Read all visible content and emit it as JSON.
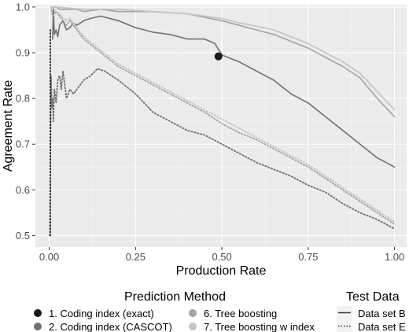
{
  "chart_data": {
    "type": "line",
    "xlabel": "Production Rate",
    "ylabel": "Agreement Rate",
    "xlim": [
      -0.04,
      1.035
    ],
    "ylim": [
      0.475,
      1.005
    ],
    "x_ticks": [
      0.0,
      0.25,
      0.5,
      0.75,
      1.0
    ],
    "x_tick_labels": [
      "0.00",
      "0.25",
      "0.50",
      "0.75",
      "1.00"
    ],
    "y_ticks": [
      0.5,
      0.6,
      0.7,
      0.8,
      0.9,
      1.0
    ],
    "y_tick_labels": [
      "0.5",
      "0.6",
      "0.7",
      "0.8",
      "0.9",
      "1.0"
    ],
    "grid": true,
    "legend_placement": "bottom",
    "legends": {
      "method_title": "Prediction Method",
      "method_items": [
        {
          "label": "1. Coding index (exact)",
          "color": "#1a1a1a"
        },
        {
          "label": "2. Coding index (CASCOT)",
          "color": "#707070"
        },
        {
          "label": "6. Tree boosting",
          "color": "#a3a3a3"
        },
        {
          "label": "7. Tree boosting w index",
          "color": "#c4c4c4"
        }
      ],
      "test_title": "Test Data",
      "test_items": [
        {
          "label": "Data set B",
          "style": "solid"
        },
        {
          "label": "Data set E",
          "style": "dotted"
        }
      ]
    },
    "points": [
      {
        "name": "1. Coding index (exact)",
        "test": "Data set B",
        "x": 0.49,
        "y": 0.892,
        "color": "#1a1a1a"
      }
    ],
    "series": [
      {
        "method": "2. Coding index (CASCOT)",
        "test": "Data set B",
        "style": "solid",
        "color": "#707070",
        "x": [
          0.01,
          0.012,
          0.015,
          0.02,
          0.025,
          0.03,
          0.04,
          0.05,
          0.06,
          0.07,
          0.08,
          0.1,
          0.12,
          0.15,
          0.2,
          0.25,
          0.3,
          0.35,
          0.4,
          0.45,
          0.48,
          0.5,
          0.55,
          0.6,
          0.65,
          0.7,
          0.75,
          0.8,
          0.85,
          0.9,
          0.95,
          1.0
        ],
        "y": [
          0.93,
          1.0,
          0.94,
          0.95,
          0.935,
          0.96,
          0.97,
          0.95,
          0.955,
          0.965,
          0.96,
          0.97,
          0.975,
          0.98,
          0.97,
          0.955,
          0.945,
          0.94,
          0.93,
          0.93,
          0.92,
          0.895,
          0.88,
          0.86,
          0.84,
          0.81,
          0.79,
          0.76,
          0.73,
          0.7,
          0.67,
          0.65
        ]
      },
      {
        "method": "6. Tree boosting",
        "test": "Data set B",
        "style": "solid",
        "color": "#a3a3a3",
        "x": [
          0.01,
          0.02,
          0.03,
          0.05,
          0.08,
          0.1,
          0.15,
          0.2,
          0.3,
          0.4,
          0.5,
          0.55,
          0.6,
          0.65,
          0.7,
          0.75,
          0.8,
          0.85,
          0.9,
          0.95,
          1.0
        ],
        "y": [
          1.0,
          1.0,
          0.995,
          0.995,
          0.995,
          0.99,
          0.995,
          0.99,
          0.99,
          0.985,
          0.97,
          0.96,
          0.95,
          0.94,
          0.925,
          0.91,
          0.89,
          0.87,
          0.845,
          0.8,
          0.76
        ]
      },
      {
        "method": "7. Tree boosting w index",
        "test": "Data set B",
        "style": "solid",
        "color": "#c4c4c4",
        "x": [
          0.01,
          0.02,
          0.05,
          0.1,
          0.2,
          0.3,
          0.4,
          0.5,
          0.55,
          0.6,
          0.65,
          0.7,
          0.75,
          0.8,
          0.85,
          0.9,
          0.95,
          1.0
        ],
        "y": [
          1.0,
          1.0,
          0.998,
          0.995,
          0.995,
          0.99,
          0.985,
          0.975,
          0.965,
          0.958,
          0.95,
          0.935,
          0.92,
          0.9,
          0.88,
          0.855,
          0.815,
          0.775
        ]
      },
      {
        "method": "2. Coding index (CASCOT)",
        "test": "Data set E",
        "style": "dotted",
        "color": "#707070",
        "x": [
          0.002,
          0.005,
          0.008,
          0.01,
          0.012,
          0.015,
          0.02,
          0.025,
          0.03,
          0.035,
          0.04,
          0.05,
          0.06,
          0.07,
          0.08,
          0.1,
          0.12,
          0.14,
          0.16,
          0.2,
          0.25,
          0.3,
          0.35,
          0.4,
          0.45,
          0.5,
          0.55,
          0.6,
          0.65,
          0.7,
          0.75,
          0.8,
          0.85,
          0.9,
          0.95,
          1.0
        ],
        "y": [
          0.5,
          0.85,
          0.78,
          0.8,
          0.75,
          0.82,
          0.79,
          0.84,
          0.85,
          0.82,
          0.86,
          0.8,
          0.82,
          0.81,
          0.82,
          0.84,
          0.85,
          0.865,
          0.86,
          0.84,
          0.81,
          0.77,
          0.75,
          0.73,
          0.72,
          0.7,
          0.68,
          0.66,
          0.645,
          0.63,
          0.61,
          0.595,
          0.57,
          0.55,
          0.535,
          0.515
        ]
      },
      {
        "method": "6. Tree boosting",
        "test": "Data set E",
        "style": "dotted",
        "color": "#a3a3a3",
        "x": [
          0.005,
          0.01,
          0.02,
          0.03,
          0.04,
          0.05,
          0.06,
          0.08,
          0.1,
          0.15,
          0.2,
          0.25,
          0.3,
          0.35,
          0.4,
          0.45,
          0.5,
          0.55,
          0.6,
          0.65,
          0.7,
          0.75,
          0.8,
          0.85,
          0.9,
          0.95,
          1.0
        ],
        "y": [
          1.0,
          0.98,
          0.99,
          0.98,
          0.97,
          0.96,
          0.97,
          0.95,
          0.93,
          0.9,
          0.87,
          0.85,
          0.83,
          0.81,
          0.79,
          0.77,
          0.745,
          0.725,
          0.71,
          0.69,
          0.67,
          0.65,
          0.625,
          0.6,
          0.575,
          0.55,
          0.525
        ]
      },
      {
        "method": "7. Tree boosting w index",
        "test": "Data set E",
        "style": "dotted",
        "color": "#c4c4c4",
        "x": [
          0.005,
          0.01,
          0.02,
          0.03,
          0.04,
          0.05,
          0.06,
          0.08,
          0.1,
          0.15,
          0.2,
          0.25,
          0.3,
          0.35,
          0.4,
          0.45,
          0.5,
          0.55,
          0.6,
          0.65,
          0.7,
          0.75,
          0.8,
          0.85,
          0.9,
          0.95,
          1.0
        ],
        "y": [
          1.0,
          1.0,
          0.99,
          0.985,
          0.975,
          0.97,
          0.975,
          0.955,
          0.935,
          0.905,
          0.875,
          0.855,
          0.835,
          0.815,
          0.795,
          0.775,
          0.755,
          0.735,
          0.715,
          0.695,
          0.675,
          0.655,
          0.63,
          0.605,
          0.58,
          0.555,
          0.53
        ]
      },
      {
        "method": "1. Coding index (exact)",
        "test": "Data set E",
        "style": "dotted",
        "color": "#1a1a1a",
        "x": [
          0.003,
          0.003
        ],
        "y": [
          0.5,
          0.95
        ]
      }
    ]
  }
}
